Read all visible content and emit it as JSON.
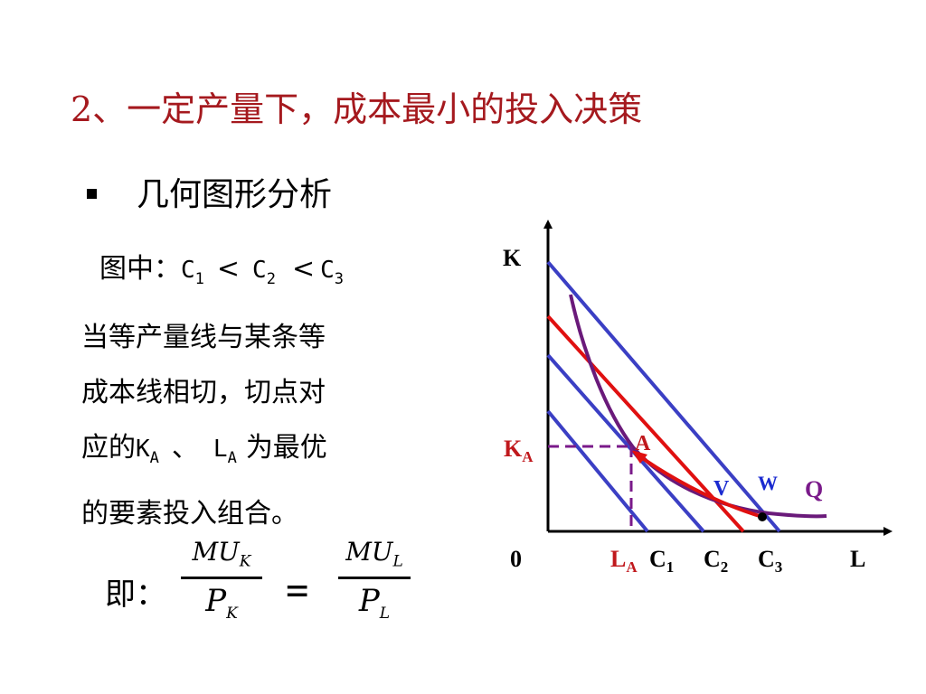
{
  "title": "2、一定产量下，成本最小的投入决策",
  "bullet": "几何图形分析",
  "inequality": {
    "prefix": "图中：",
    "c": "C",
    "sub1": "1",
    "sub2": "2",
    "sub3": "3",
    "lt": "<"
  },
  "paragraph": {
    "line1": "当等产量线与某条等",
    "line2": "成本线相切，切点对",
    "line3_a": "应的",
    "k": "K",
    "a": "A",
    "sep": "、",
    "l": "L",
    "line3_b": "为最优",
    "line4": "的要素投入组合。"
  },
  "equation": {
    "prefix": "即：",
    "mu": "MU",
    "k_sub": "K",
    "l_sub": "L",
    "p": "P",
    "equals": "="
  },
  "diagram": {
    "y_axis_label": "K",
    "x_axis_label": "L",
    "origin_label": "0",
    "ka_label": "K",
    "ka_sub": "A",
    "la_label": "L",
    "la_sub": "A",
    "c1_label": "C",
    "c1_sub": "1",
    "c2_label": "C",
    "c2_sub": "2",
    "c3_label": "C",
    "c3_sub": "3",
    "point_a": "A",
    "point_v": "V",
    "point_w": "W",
    "curve_q": "Q",
    "colors": {
      "isocost": "#3b3fc4",
      "tangent_line": "#e01010",
      "isoquant": "#6a1a7a",
      "guide": "#7a1a8a",
      "label_red": "#c0181c",
      "label_purple": "#7a1a8a",
      "label_blue": "#1a2ad0"
    }
  }
}
